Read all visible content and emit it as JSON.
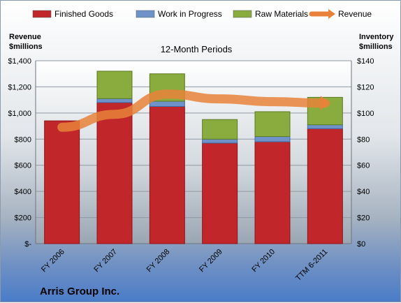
{
  "chart_data": {
    "type": "bar",
    "subtype": "stacked-bar-with-line",
    "title": "12-Month Periods",
    "company": "Arris Group Inc.",
    "categories": [
      "FY 2006",
      "FY 2007",
      "FY 2008",
      "FY 2009",
      "FY 2010",
      "TTM 6-2011"
    ],
    "left_axis": {
      "title_line1": "Revenue",
      "title_line2": "$millions",
      "range": [
        0,
        1400
      ],
      "ticks": [
        "$-",
        "$200",
        "$400",
        "$600",
        "$800",
        "$1,000",
        "$1,200",
        "$1,400"
      ]
    },
    "right_axis": {
      "title_line1": "Inventory",
      "title_line2": "$millions",
      "range": [
        0,
        140
      ],
      "ticks": [
        "$0",
        "$20",
        "$40",
        "$60",
        "$80",
        "$100",
        "$120",
        "$140"
      ]
    },
    "series": [
      {
        "name": "Finished Goods",
        "axis": "right",
        "color": "#c0262a",
        "values": [
          94,
          108,
          105,
          77,
          78,
          88
        ]
      },
      {
        "name": "Work in Progress",
        "axis": "right",
        "color": "#6f93c8",
        "values": [
          0,
          3,
          4,
          3,
          4,
          3
        ]
      },
      {
        "name": "Raw Materials",
        "axis": "right",
        "color": "#8aab3e",
        "values": [
          0,
          21,
          21,
          15,
          19,
          21
        ]
      },
      {
        "name": "Revenue",
        "axis": "left",
        "color": "#e8823a",
        "type": "line",
        "values": [
          891,
          990,
          1145,
          1108,
          1087,
          1075
        ]
      }
    ],
    "grid": true,
    "legend": "top"
  }
}
